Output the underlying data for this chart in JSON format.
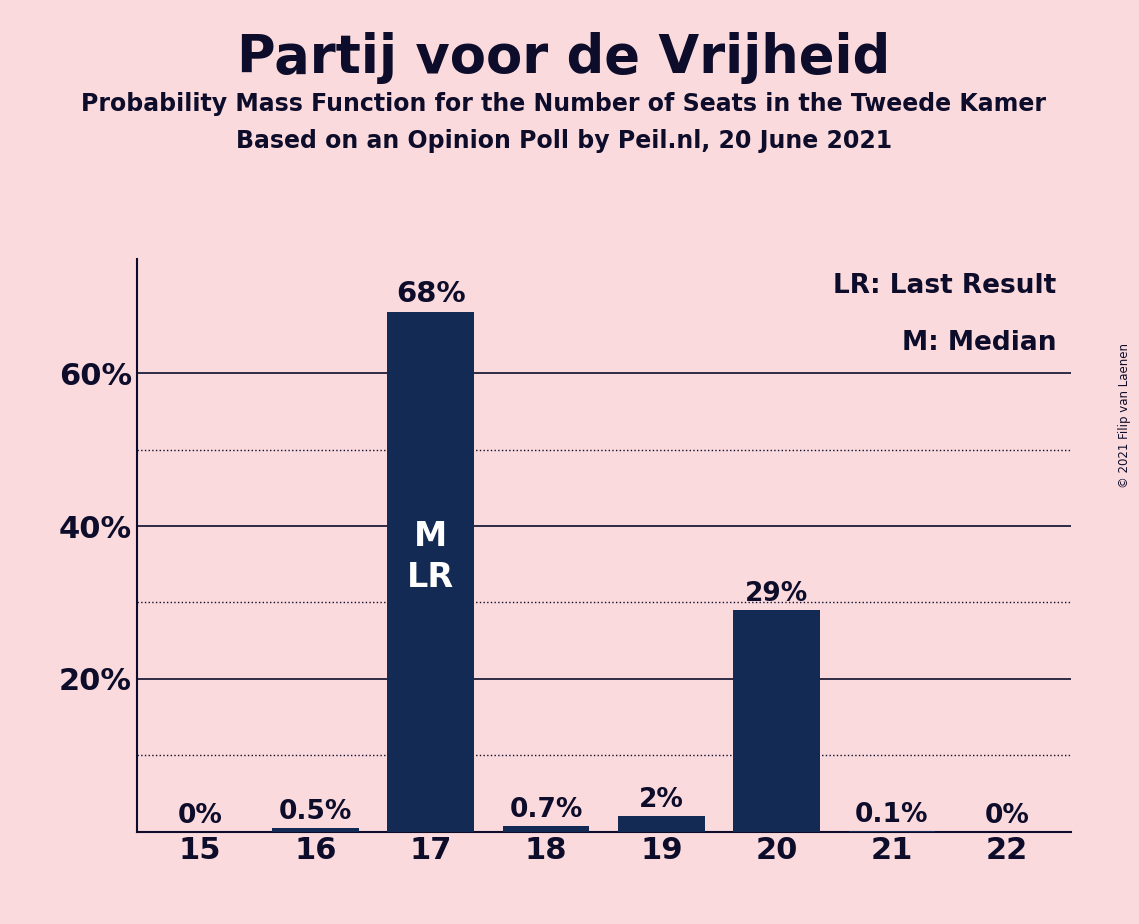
{
  "title": "Partij voor de Vrijheid",
  "subtitle1": "Probability Mass Function for the Number of Seats in the Tweede Kamer",
  "subtitle2": "Based on an Opinion Poll by Peil.nl, 20 June 2021",
  "copyright": "© 2021 Filip van Laenen",
  "categories": [
    15,
    16,
    17,
    18,
    19,
    20,
    21,
    22
  ],
  "values": [
    0.0,
    0.5,
    68.0,
    0.7,
    2.0,
    29.0,
    0.1,
    0.0
  ],
  "bar_color": "#132A54",
  "background_color": "#FADADD",
  "text_color": "#0d0d2b",
  "bar_labels": [
    "0%",
    "0.5%",
    "68%",
    "0.7%",
    "2%",
    "29%",
    "0.1%",
    "0%"
  ],
  "bar_label_inside_seat": 17,
  "bar_label_inside_text": "M\nLR",
  "legend_text": [
    "LR: Last Result",
    "M: Median"
  ],
  "ylim": [
    0,
    75
  ],
  "dotted_grid_values": [
    10,
    30,
    50
  ],
  "solid_grid_values": [
    20,
    40,
    60
  ]
}
